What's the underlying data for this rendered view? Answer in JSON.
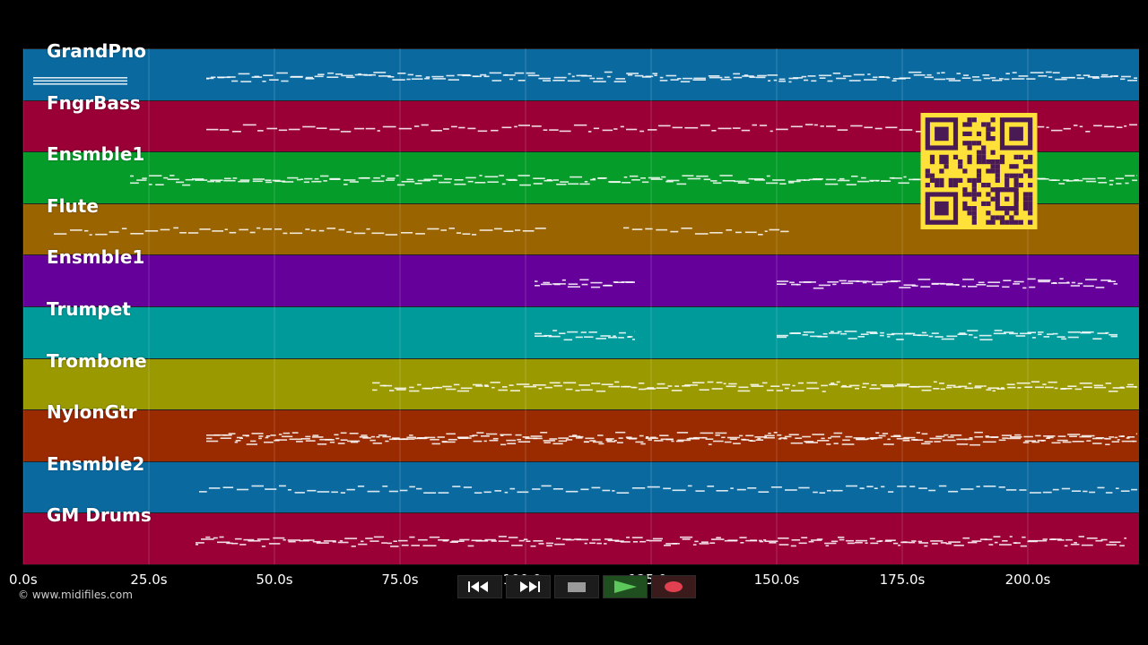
{
  "tracks": [
    {
      "name": "GrandPno",
      "color": "#0a6aa0"
    },
    {
      "name": "FngrBass",
      "color": "#9a0036"
    },
    {
      "name": "Ensmble1",
      "color": "#069c2a"
    },
    {
      "name": "Flute",
      "color": "#9a6400"
    },
    {
      "name": "Ensmble1",
      "color": "#66009a"
    },
    {
      "name": "Trumpet",
      "color": "#009a9a"
    },
    {
      "name": "Trombone",
      "color": "#9a9a00"
    },
    {
      "name": "NylonGtr",
      "color": "#9a2a00"
    },
    {
      "name": "Ensmble2",
      "color": "#0a6aa0"
    },
    {
      "name": "GM Drums",
      "color": "#9a0036"
    }
  ],
  "time_axis": {
    "ticks": [
      "0.0s",
      "25.0s",
      "50.0s",
      "75.0s",
      "100.0s",
      "125.0s",
      "150.0s",
      "175.0s",
      "200.0s"
    ]
  },
  "copyright": "© www.midifiles.com",
  "controls": [
    {
      "name": "rewind-button",
      "icon": "rewind-icon"
    },
    {
      "name": "fast-forward-button",
      "icon": "fast-forward-icon"
    },
    {
      "name": "stop-button",
      "icon": "stop-icon"
    },
    {
      "name": "play-button",
      "icon": "play-icon"
    },
    {
      "name": "record-button",
      "icon": "record-icon"
    }
  ],
  "colors": {
    "background": "#000000",
    "qr_bg": "#ffe13a",
    "qr_fg": "#4a1a55",
    "note": "#ffffff"
  }
}
